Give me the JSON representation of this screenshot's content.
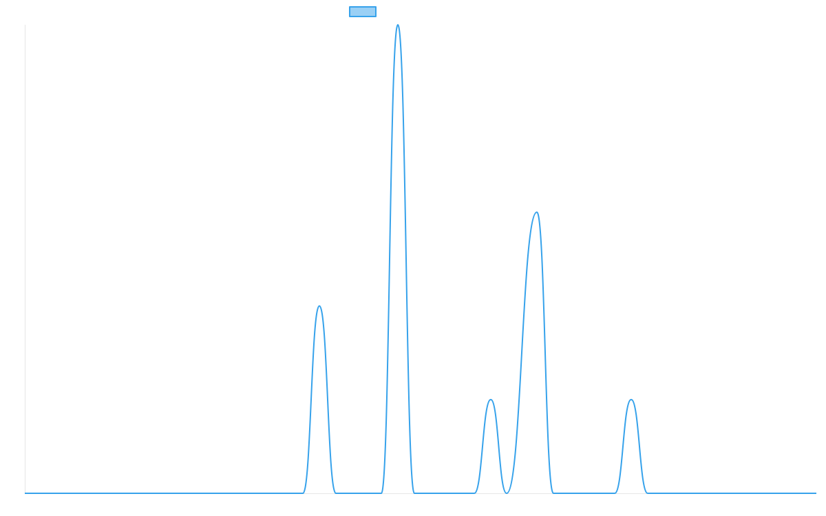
{
  "chart_data": {
    "type": "line",
    "title": "",
    "xlabel": "",
    "ylabel": "",
    "grid": false,
    "legend": "top-center",
    "series": [
      {
        "name": "",
        "color": "#36a2eb",
        "fill": "#9ad0f5",
        "points": [
          [
            0,
            0
          ],
          [
            404,
            0
          ],
          [
            428,
            40
          ],
          [
            452,
            0
          ],
          [
            518,
            0
          ],
          [
            542,
            100
          ],
          [
            566,
            0
          ],
          [
            653,
            0
          ],
          [
            677,
            20
          ],
          [
            700,
            0
          ],
          [
            744,
            60
          ],
          [
            768,
            0
          ],
          [
            857,
            0
          ],
          [
            881,
            20
          ],
          [
            905,
            0
          ],
          [
            1150,
            0
          ]
        ]
      }
    ],
    "xlim": [
      0,
      1150
    ],
    "ylim": [
      0,
      100
    ]
  }
}
